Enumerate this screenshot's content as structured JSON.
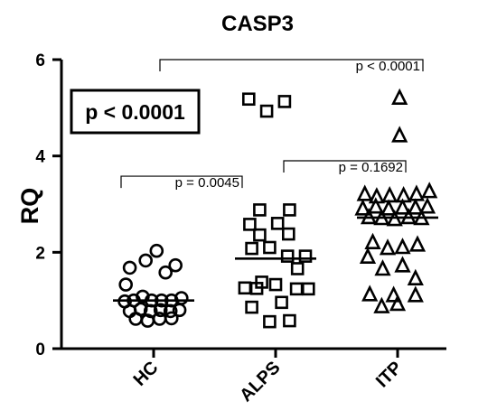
{
  "chart_data": {
    "type": "scatter",
    "title": "CASP3",
    "ylabel": "RQ",
    "xlabel": "",
    "ylim": [
      0,
      6
    ],
    "yticks": [
      "0",
      "2",
      "4",
      "6"
    ],
    "grid": false,
    "categories": [
      "HC",
      "ALPS",
      "ITP"
    ],
    "series": [
      {
        "marker": "circle",
        "median": 1.0,
        "points": [
          {
            "x": -0.24,
            "y": 1.68
          },
          {
            "x": -0.08,
            "y": 1.83
          },
          {
            "x": 0.03,
            "y": 2.03
          },
          {
            "x": 0.22,
            "y": 1.73
          },
          {
            "x": 0.12,
            "y": 1.58
          },
          {
            "x": -0.28,
            "y": 1.33
          },
          {
            "x": 0.28,
            "y": 1.05
          },
          {
            "x": -0.29,
            "y": 0.98
          },
          {
            "x": -0.2,
            "y": 1.0
          },
          {
            "x": -0.11,
            "y": 1.08
          },
          {
            "x": -0.02,
            "y": 1.0
          },
          {
            "x": 0.08,
            "y": 1.0
          },
          {
            "x": 0.18,
            "y": 1.0
          },
          {
            "x": -0.24,
            "y": 0.78
          },
          {
            "x": -0.13,
            "y": 0.82
          },
          {
            "x": -0.03,
            "y": 0.78
          },
          {
            "x": 0.07,
            "y": 0.8
          },
          {
            "x": 0.17,
            "y": 0.78
          },
          {
            "x": 0.26,
            "y": 0.8
          },
          {
            "x": -0.18,
            "y": 0.62
          },
          {
            "x": -0.06,
            "y": 0.58
          },
          {
            "x": 0.06,
            "y": 0.62
          },
          {
            "x": 0.18,
            "y": 0.63
          }
        ]
      },
      {
        "marker": "square",
        "median": 1.87,
        "points": [
          {
            "x": -0.27,
            "y": 5.18
          },
          {
            "x": -0.09,
            "y": 4.93
          },
          {
            "x": 0.09,
            "y": 5.13
          },
          {
            "x": -0.16,
            "y": 2.88
          },
          {
            "x": 0.14,
            "y": 2.88
          },
          {
            "x": -0.26,
            "y": 2.58
          },
          {
            "x": 0.02,
            "y": 2.6
          },
          {
            "x": -0.16,
            "y": 2.36
          },
          {
            "x": 0.13,
            "y": 2.38
          },
          {
            "x": -0.24,
            "y": 2.08
          },
          {
            "x": -0.06,
            "y": 2.1
          },
          {
            "x": 0.12,
            "y": 1.92
          },
          {
            "x": 0.3,
            "y": 1.92
          },
          {
            "x": 0.22,
            "y": 1.66
          },
          {
            "x": -0.14,
            "y": 1.38
          },
          {
            "x": 0.0,
            "y": 1.33
          },
          {
            "x": -0.31,
            "y": 1.26
          },
          {
            "x": -0.19,
            "y": 1.25
          },
          {
            "x": 0.21,
            "y": 1.24
          },
          {
            "x": 0.33,
            "y": 1.24
          },
          {
            "x": -0.24,
            "y": 0.86
          },
          {
            "x": 0.06,
            "y": 0.96
          },
          {
            "x": -0.06,
            "y": 0.56
          },
          {
            "x": 0.14,
            "y": 0.58
          }
        ]
      },
      {
        "marker": "triangle",
        "median": 2.72,
        "points": [
          {
            "x": 0.02,
            "y": 5.2
          },
          {
            "x": 0.02,
            "y": 4.42
          },
          {
            "x": -0.33,
            "y": 3.2
          },
          {
            "x": -0.21,
            "y": 3.15
          },
          {
            "x": -0.08,
            "y": 3.17
          },
          {
            "x": 0.06,
            "y": 3.17
          },
          {
            "x": 0.19,
            "y": 3.2
          },
          {
            "x": 0.32,
            "y": 3.26
          },
          {
            "x": -0.35,
            "y": 2.9
          },
          {
            "x": -0.22,
            "y": 2.94
          },
          {
            "x": -0.09,
            "y": 2.9
          },
          {
            "x": 0.05,
            "y": 2.92
          },
          {
            "x": 0.18,
            "y": 2.92
          },
          {
            "x": 0.3,
            "y": 2.94
          },
          {
            "x": -0.29,
            "y": 2.72
          },
          {
            "x": -0.16,
            "y": 2.7
          },
          {
            "x": -0.03,
            "y": 2.68
          },
          {
            "x": 0.11,
            "y": 2.72
          },
          {
            "x": 0.24,
            "y": 2.7
          },
          {
            "x": -0.25,
            "y": 2.2
          },
          {
            "x": -0.1,
            "y": 2.08
          },
          {
            "x": 0.05,
            "y": 2.1
          },
          {
            "x": 0.2,
            "y": 2.15
          },
          {
            "x": -0.3,
            "y": 1.9
          },
          {
            "x": 0.05,
            "y": 1.72
          },
          {
            "x": -0.15,
            "y": 1.65
          },
          {
            "x": 0.18,
            "y": 1.45
          },
          {
            "x": -0.28,
            "y": 1.12
          },
          {
            "x": -0.04,
            "y": 1.1
          },
          {
            "x": 0.18,
            "y": 1.1
          },
          {
            "x": -0.16,
            "y": 0.87
          },
          {
            "x": 0.0,
            "y": 0.92
          }
        ]
      }
    ],
    "comparisons": [
      {
        "from": 0,
        "to": 2,
        "y": 6.0,
        "label": "p < 0.0001"
      },
      {
        "from": 0,
        "to": 1,
        "y": 3.58,
        "label": "p = 0.0045"
      },
      {
        "from": 1,
        "to": 2,
        "y": 3.9,
        "label": "p = 0.1692"
      }
    ],
    "overall_p": "p < 0.0001"
  }
}
